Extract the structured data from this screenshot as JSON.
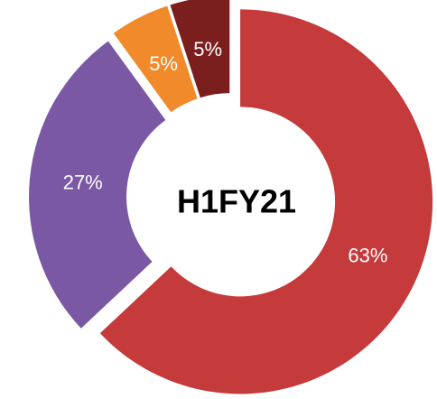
{
  "chart_data": {
    "type": "donut",
    "title": "H1FY21",
    "categories": [
      null,
      null,
      null,
      null
    ],
    "values": [
      63,
      27,
      5,
      5
    ],
    "value_labels": [
      "63%",
      "27%",
      "5%",
      "5%"
    ],
    "colors": [
      "#c53a3a",
      "#7a58a4",
      "#f08a2a",
      "#7b1e1e"
    ]
  }
}
